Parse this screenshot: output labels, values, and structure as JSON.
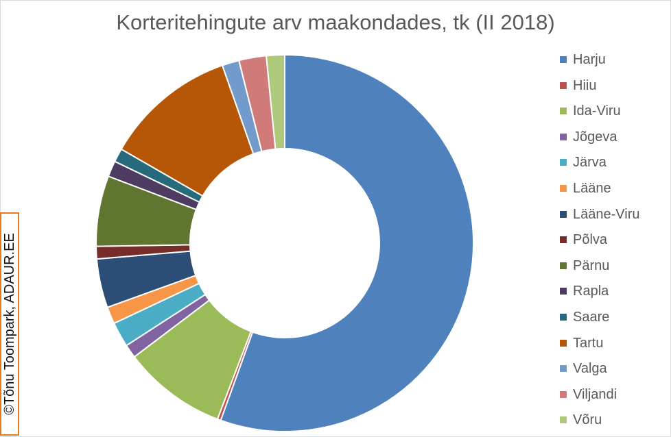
{
  "chart_data": {
    "type": "pie",
    "title": "Korteritehingute arv maakondades, tk (II 2018)",
    "hole": "donut",
    "legend_position": "right",
    "categories": [
      "Harju",
      "Hiiu",
      "Ida-Viru",
      "Jõgeva",
      "Järva",
      "Lääne",
      "Lääne-Viru",
      "Põlva",
      "Pärnu",
      "Rapla",
      "Saare",
      "Tartu",
      "Valga",
      "Viljandi",
      "Võru"
    ],
    "values": [
      56.9,
      0.3,
      9.1,
      1.2,
      2.2,
      1.5,
      4.3,
      1.1,
      6.2,
      1.4,
      1.2,
      11.6,
      1.5,
      2.4,
      1.6
    ],
    "colors": [
      "#4f81bd",
      "#c0504d",
      "#9bbb59",
      "#8064a2",
      "#4bacc6",
      "#f79646",
      "#2c4d75",
      "#772c2a",
      "#5f7530",
      "#4d3b62",
      "#276a7c",
      "#b65708",
      "#729aca",
      "#d07b79",
      "#afc97a"
    ]
  },
  "watermark": "©Tõnu Toompark, ADAUR.EE"
}
